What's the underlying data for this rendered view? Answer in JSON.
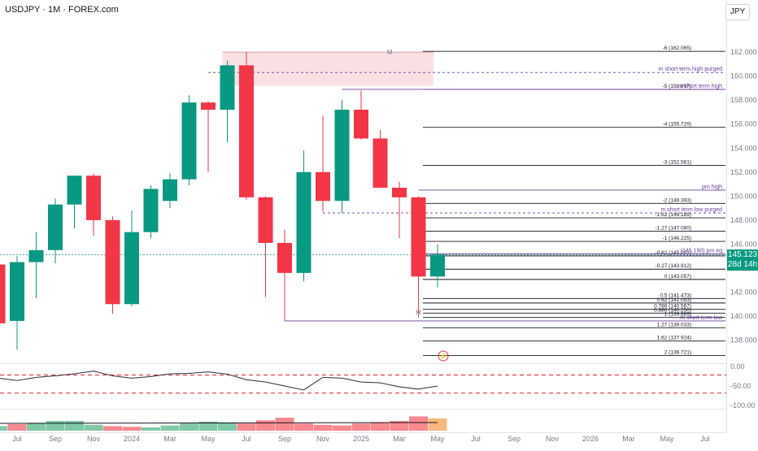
{
  "header": {
    "title": "USDJPY · 1M · FOREX.com",
    "currency": "JPY"
  },
  "last_price": {
    "value": "145.123",
    "countdown": "28d 14h"
  },
  "colors": {
    "up": "#089981",
    "down": "#f23645",
    "box": "#fbe0e3",
    "purple": "#6a3fa0",
    "rsi": "#2a2e39",
    "dash_red": "#e4202b"
  },
  "chart_data": [
    {
      "type": "candlestick",
      "title": "USDJPY · 1M · FOREX.com",
      "y_axis": {
        "range": [
          135.6,
          165.8
        ],
        "ticks": [
          138,
          140,
          142,
          144,
          146,
          148,
          150,
          152,
          154,
          156,
          158,
          160,
          162
        ],
        "tick_labels": [
          "138.000",
          "140.000",
          "142.000",
          "144.000",
          "146.000",
          "148.000",
          "150.000",
          "152.000",
          "154.000",
          "156.000",
          "158.000",
          "160.000",
          "162.000"
        ]
      },
      "x_axis": {
        "ticks": [
          {
            "label": "Jul",
            "i": 0
          },
          {
            "label": "Sep",
            "i": 2
          },
          {
            "label": "Nov",
            "i": 4
          },
          {
            "label": "2024",
            "i": 6
          },
          {
            "label": "Mar",
            "i": 8
          },
          {
            "label": "May",
            "i": 10
          },
          {
            "label": "Jul",
            "i": 12
          },
          {
            "label": "Sep",
            "i": 14
          },
          {
            "label": "Nov",
            "i": 16
          },
          {
            "label": "2025",
            "i": 18
          },
          {
            "label": "Mar",
            "i": 20
          },
          {
            "label": "May",
            "i": 22
          },
          {
            "label": "Jul",
            "i": 24
          },
          {
            "label": "Sep",
            "i": 26
          },
          {
            "label": "Nov",
            "i": 28
          },
          {
            "label": "2026",
            "i": 30
          },
          {
            "label": "Mar",
            "i": 32
          },
          {
            "label": "May",
            "i": 34
          },
          {
            "label": "Jul",
            "i": 36
          }
        ]
      },
      "candles": [
        {
          "i": -1,
          "o": 144.3,
          "h": 145.1,
          "l": 139.4,
          "c": 139.4
        },
        {
          "i": 0,
          "o": 139.6,
          "h": 145.0,
          "l": 137.2,
          "c": 144.5
        },
        {
          "i": 1,
          "o": 144.5,
          "h": 147.0,
          "l": 141.5,
          "c": 145.5
        },
        {
          "i": 2,
          "o": 145.5,
          "h": 149.8,
          "l": 144.4,
          "c": 149.3
        },
        {
          "i": 3,
          "o": 149.3,
          "h": 151.7,
          "l": 147.3,
          "c": 151.7
        },
        {
          "i": 4,
          "o": 151.7,
          "h": 151.9,
          "l": 146.7,
          "c": 148.0
        },
        {
          "i": 5,
          "o": 148.0,
          "h": 148.3,
          "l": 140.2,
          "c": 141.0
        },
        {
          "i": 6,
          "o": 141.0,
          "h": 148.8,
          "l": 140.8,
          "c": 147.0
        },
        {
          "i": 7,
          "o": 147.0,
          "h": 150.9,
          "l": 146.5,
          "c": 150.6
        },
        {
          "i": 8,
          "o": 149.6,
          "h": 151.9,
          "l": 149.0,
          "c": 151.4
        },
        {
          "i": 9,
          "o": 151.4,
          "h": 158.4,
          "l": 150.9,
          "c": 157.8
        },
        {
          "i": 10,
          "o": 157.8,
          "h": 157.9,
          "l": 152.0,
          "c": 157.2
        },
        {
          "i": 11,
          "o": 157.2,
          "h": 161.3,
          "l": 154.5,
          "c": 160.9
        },
        {
          "i": 12,
          "o": 160.9,
          "h": 162.0,
          "l": 149.7,
          "c": 149.9
        },
        {
          "i": 13,
          "o": 149.9,
          "h": 150.0,
          "l": 141.6,
          "c": 146.1
        },
        {
          "i": 14,
          "o": 146.1,
          "h": 147.2,
          "l": 139.6,
          "c": 143.6
        },
        {
          "i": 15,
          "o": 143.6,
          "h": 153.8,
          "l": 142.9,
          "c": 152.0
        },
        {
          "i": 16,
          "o": 152.0,
          "h": 156.7,
          "l": 148.7,
          "c": 149.6
        },
        {
          "i": 17,
          "o": 149.6,
          "h": 158.0,
          "l": 148.6,
          "c": 157.2
        },
        {
          "i": 18,
          "o": 157.2,
          "h": 158.8,
          "l": 154.7,
          "c": 154.8
        },
        {
          "i": 19,
          "o": 154.8,
          "h": 155.5,
          "l": 150.9,
          "c": 150.7
        },
        {
          "i": 20,
          "o": 150.7,
          "h": 151.2,
          "l": 146.5,
          "c": 149.9
        },
        {
          "i": 21,
          "o": 149.9,
          "h": 150.0,
          "l": 139.9,
          "c": 143.3
        },
        {
          "i": 22,
          "o": 143.3,
          "h": 146.0,
          "l": 142.4,
          "c": 145.12
        }
      ],
      "fib_levels": [
        {
          "label": "-6 (162.065)",
          "y": 162.065
        },
        {
          "label": "-5 (158.897)",
          "y": 158.897
        },
        {
          "label": "-4 (155.729)",
          "y": 155.729
        },
        {
          "label": "-3 (152.561)",
          "y": 152.561
        },
        {
          "label": "-2 (149.393)",
          "y": 149.393
        },
        {
          "label": "-1.62 (148.189)",
          "y": 148.189
        },
        {
          "label": "-1.27 (147.080)",
          "y": 147.08
        },
        {
          "label": "-1 (146.225)",
          "y": 146.225
        },
        {
          "label": "-0.62 (145.021)",
          "y": 145.021
        },
        {
          "label": "-0.27 (143.912)",
          "y": 143.912
        },
        {
          "label": "0 (143.057)",
          "y": 143.057
        },
        {
          "label": "0.5 (141.473)",
          "y": 141.473
        },
        {
          "label": "0.62 (141.093)",
          "y": 141.093
        },
        {
          "label": "0.786 (140.567)",
          "y": 140.567
        },
        {
          "label": "0.886 (140.250)",
          "y": 140.25
        },
        {
          "label": "1 (139.889)",
          "y": 139.889
        },
        {
          "label": "1.27 (139.033)",
          "y": 139.033
        },
        {
          "label": "1.62 (137.924)",
          "y": 137.924
        },
        {
          "label": "2 (136.721)",
          "y": 136.721
        }
      ],
      "levels": [
        {
          "label": "m short term high purged",
          "y": 160.3,
          "style": "dashed",
          "from": 10
        },
        {
          "label": "m short term high",
          "y": 158.9,
          "style": "solid",
          "from": 17
        },
        {
          "label": "pm high",
          "y": 150.5,
          "style": "solid",
          "from": 21
        },
        {
          "label": "m short term low purged",
          "y": 148.6,
          "style": "dashed",
          "from": 16
        },
        {
          "label": "m short term low",
          "y": 139.6,
          "style": "solid",
          "from": 14
        },
        {
          "label": "(145.190) pm eq",
          "y": 145.19,
          "style": "solid",
          "from": 21
        }
      ],
      "supply_zone": {
        "from": 11,
        "to": 22,
        "top": 162.0,
        "bottom": 159.2
      },
      "markers": [
        {
          "label": "M",
          "i": 19.5,
          "y": 162.0
        },
        {
          "label": "M",
          "i": 21,
          "y": 140.3
        }
      ]
    },
    {
      "type": "line",
      "name": "RSI",
      "y_axis": {
        "ticks": [
          0,
          -50,
          -100
        ],
        "tick_labels": [
          "0.00",
          "-50.00",
          "-100.00"
        ],
        "range": [
          -108,
          8
        ]
      },
      "reference_lines": [
        -22,
        -68
      ],
      "values": [
        -30,
        -36,
        -28,
        -24,
        -19,
        -12,
        -24,
        -30,
        -26,
        -19,
        -18,
        -14,
        -20,
        -34,
        -40,
        -50,
        -60,
        -28,
        -30,
        -40,
        -42,
        -52,
        -58,
        -50
      ]
    },
    {
      "type": "bar",
      "name": "Volume histogram",
      "colors_by_index": [
        "up",
        "down",
        "up",
        "up",
        "up",
        "up",
        "down",
        "down",
        "up",
        "up",
        "up",
        "up",
        "up",
        "down",
        "down",
        "down",
        "down",
        "down",
        "down",
        "down",
        "down",
        "down",
        "down",
        "orange"
      ],
      "values": [
        0.35,
        0.5,
        0.6,
        0.75,
        0.75,
        0.45,
        0.35,
        0.3,
        0.25,
        0.4,
        0.55,
        0.7,
        0.6,
        0.55,
        0.8,
        1.0,
        0.55,
        0.45,
        0.4,
        0.55,
        0.65,
        0.75,
        1.1,
        0.95
      ]
    }
  ]
}
